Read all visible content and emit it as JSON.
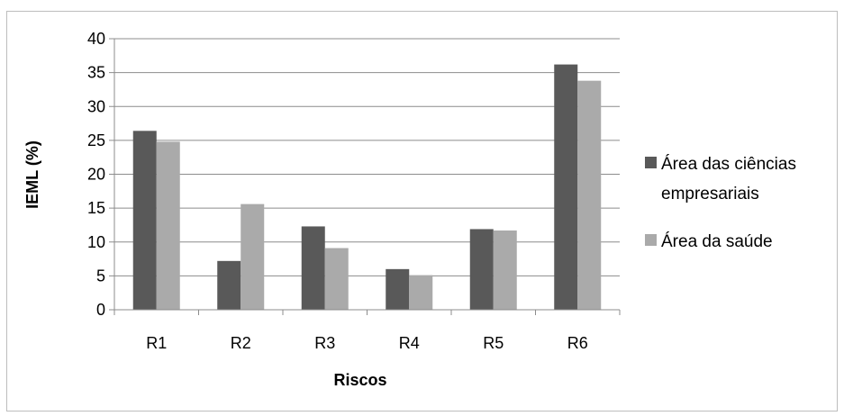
{
  "chart_data": {
    "type": "bar",
    "categories": [
      "R1",
      "R2",
      "R3",
      "R4",
      "R5",
      "R6"
    ],
    "series": [
      {
        "name": "Área das ciências empresariais",
        "values": [
          26.4,
          7.2,
          12.3,
          6.0,
          11.9,
          36.2
        ],
        "color": "#595959"
      },
      {
        "name": "Área da saúde",
        "values": [
          24.8,
          15.6,
          9.1,
          5.1,
          11.7,
          33.8
        ],
        "color": "#aaaaaa"
      }
    ],
    "title": "",
    "xlabel": "Riscos",
    "ylabel": "IEML (%)",
    "ylim": [
      0,
      40
    ],
    "yticks": [
      "0",
      "5",
      "10",
      "15",
      "20",
      "25",
      "30",
      "35",
      "40"
    ],
    "grid": true,
    "legend_position": "right",
    "legend": {
      "series1_lines": [
        "Área das ciências",
        "empresariais"
      ],
      "series2_lines": [
        "Área da saúde"
      ]
    }
  }
}
